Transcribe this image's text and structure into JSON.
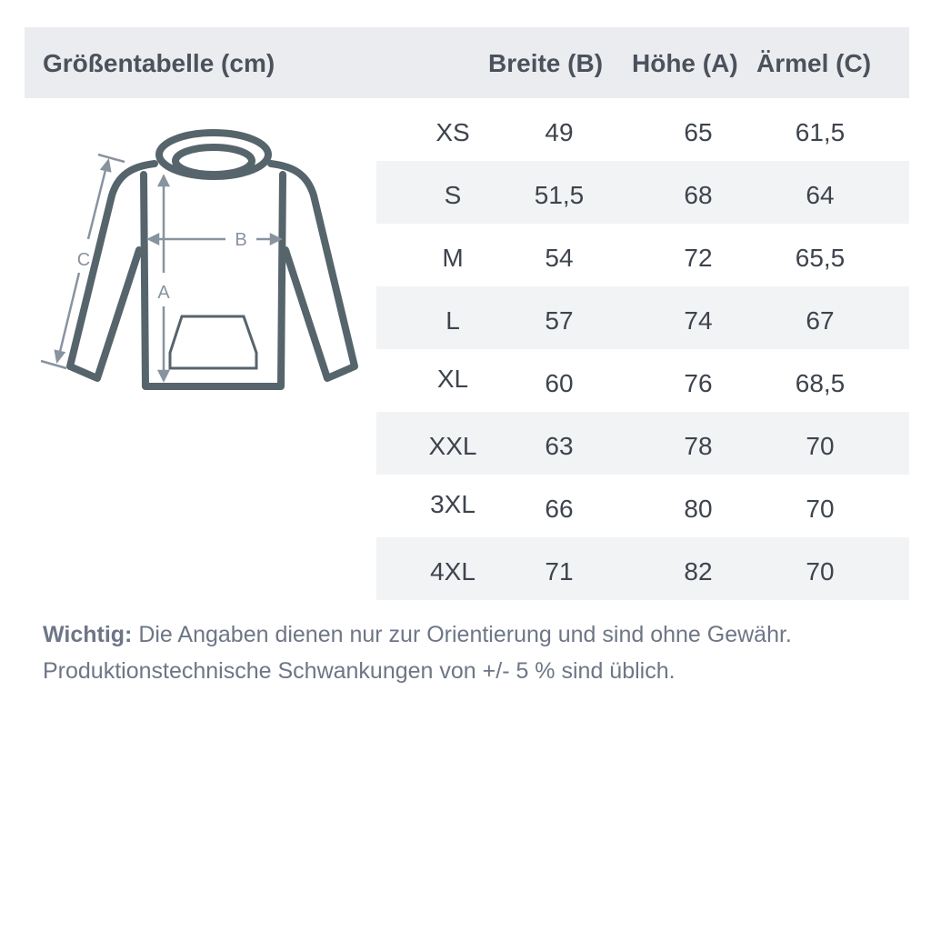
{
  "header": {
    "title": "Größentabelle (cm)",
    "columns": [
      "Breite (B)",
      "Höhe (A)",
      "Ärmel (C)"
    ]
  },
  "diagram": {
    "labels": {
      "a": "A",
      "b": "B",
      "c": "C"
    },
    "color": "#56646c",
    "arrow_color": "#8893a0"
  },
  "rows": [
    {
      "size": "XS",
      "b": "49",
      "a": "65",
      "c": "61,5"
    },
    {
      "size": "S",
      "b": "51,5",
      "a": "68",
      "c": "64"
    },
    {
      "size": "M",
      "b": "54",
      "a": "72",
      "c": "65,5"
    },
    {
      "size": "L",
      "b": "57",
      "a": "74",
      "c": "67"
    },
    {
      "size": "XL",
      "b": "60",
      "a": "76",
      "c": "68,5"
    },
    {
      "size": "XXL",
      "b": "63",
      "a": "78",
      "c": "70"
    },
    {
      "size": "3XL",
      "b": "66",
      "a": "80",
      "c": "70"
    },
    {
      "size": "4XL",
      "b": "71",
      "a": "82",
      "c": "70"
    }
  ],
  "note": {
    "label": "Wichtig:",
    "line1": " Die Angaben dienen nur zur Orientierung und sind ohne Gewähr.",
    "line2": "Produktionstechnische Schwankungen von +/- 5 % sind üblich."
  }
}
